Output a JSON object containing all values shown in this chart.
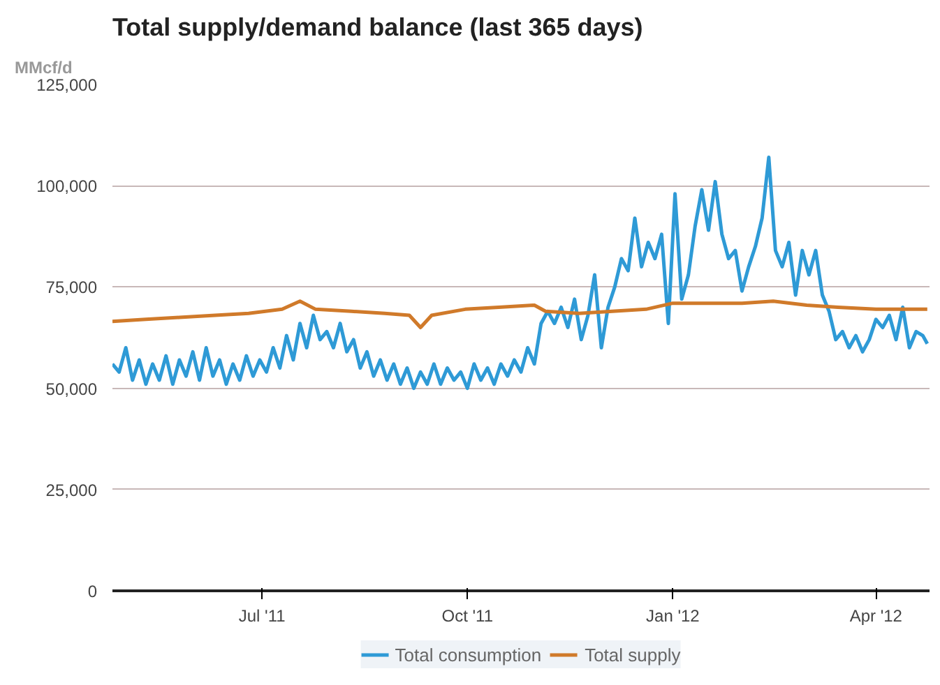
{
  "chart_data": {
    "type": "line",
    "title": "Total supply/demand balance (last 365 days)",
    "ylabel": "MMcf/d",
    "xlim": [
      "2011-04-25",
      "2012-04-25"
    ],
    "ylim": [
      0,
      125000
    ],
    "yticks": [
      {
        "value": 0,
        "label": "0"
      },
      {
        "value": 25000,
        "label": "25,000"
      },
      {
        "value": 50000,
        "label": "50,000"
      },
      {
        "value": 75000,
        "label": "75,000"
      },
      {
        "value": 100000,
        "label": "100,000"
      },
      {
        "value": 125000,
        "label": "125,000"
      }
    ],
    "xticks": [
      {
        "value": "2011-07-01",
        "label": "Jul '11"
      },
      {
        "value": "2011-10-01",
        "label": "Oct '11"
      },
      {
        "value": "2012-01-01",
        "label": "Jan '12"
      },
      {
        "value": "2012-04-01",
        "label": "Apr '12"
      }
    ],
    "grid": "y",
    "legend": "bottom",
    "marker": "none",
    "line_style": "solid",
    "series": [
      {
        "name": "Total consumption",
        "color": "#2e9ad6",
        "x": [
          "2011-04-25",
          "2011-04-28",
          "2011-05-01",
          "2011-05-04",
          "2011-05-07",
          "2011-05-10",
          "2011-05-13",
          "2011-05-16",
          "2011-05-19",
          "2011-05-22",
          "2011-05-25",
          "2011-05-28",
          "2011-05-31",
          "2011-06-03",
          "2011-06-06",
          "2011-06-09",
          "2011-06-12",
          "2011-06-15",
          "2011-06-18",
          "2011-06-21",
          "2011-06-24",
          "2011-06-27",
          "2011-06-30",
          "2011-07-03",
          "2011-07-06",
          "2011-07-09",
          "2011-07-12",
          "2011-07-15",
          "2011-07-18",
          "2011-07-21",
          "2011-07-24",
          "2011-07-27",
          "2011-07-30",
          "2011-08-02",
          "2011-08-05",
          "2011-08-08",
          "2011-08-11",
          "2011-08-14",
          "2011-08-17",
          "2011-08-20",
          "2011-08-23",
          "2011-08-26",
          "2011-08-29",
          "2011-09-01",
          "2011-09-04",
          "2011-09-07",
          "2011-09-10",
          "2011-09-13",
          "2011-09-16",
          "2011-09-19",
          "2011-09-22",
          "2011-09-25",
          "2011-09-28",
          "2011-10-01",
          "2011-10-04",
          "2011-10-07",
          "2011-10-10",
          "2011-10-13",
          "2011-10-16",
          "2011-10-19",
          "2011-10-22",
          "2011-10-25",
          "2011-10-28",
          "2011-10-31",
          "2011-11-03",
          "2011-11-06",
          "2011-11-09",
          "2011-11-12",
          "2011-11-15",
          "2011-11-18",
          "2011-11-21",
          "2011-11-24",
          "2011-11-27",
          "2011-11-30",
          "2011-12-03",
          "2011-12-06",
          "2011-12-09",
          "2011-12-12",
          "2011-12-15",
          "2011-12-18",
          "2011-12-21",
          "2011-12-24",
          "2011-12-27",
          "2011-12-30",
          "2012-01-02",
          "2012-01-05",
          "2012-01-08",
          "2012-01-11",
          "2012-01-14",
          "2012-01-17",
          "2012-01-20",
          "2012-01-23",
          "2012-01-26",
          "2012-01-29",
          "2012-02-01",
          "2012-02-04",
          "2012-02-07",
          "2012-02-10",
          "2012-02-13",
          "2012-02-16",
          "2012-02-19",
          "2012-02-22",
          "2012-02-25",
          "2012-02-28",
          "2012-03-02",
          "2012-03-05",
          "2012-03-08",
          "2012-03-11",
          "2012-03-14",
          "2012-03-17",
          "2012-03-20",
          "2012-03-23",
          "2012-03-26",
          "2012-03-29",
          "2012-04-01",
          "2012-04-04",
          "2012-04-07",
          "2012-04-10",
          "2012-04-13",
          "2012-04-16",
          "2012-04-19",
          "2012-04-22",
          "2012-04-24"
        ],
        "values": [
          56000,
          54000,
          60000,
          52000,
          57000,
          51000,
          56000,
          52000,
          58000,
          51000,
          57000,
          53000,
          59000,
          52000,
          60000,
          53000,
          57000,
          51000,
          56000,
          52000,
          58000,
          53000,
          57000,
          54000,
          60000,
          55000,
          63000,
          57000,
          66000,
          60000,
          68000,
          62000,
          64000,
          60000,
          66000,
          59000,
          62000,
          55000,
          59000,
          53000,
          57000,
          52000,
          56000,
          51000,
          55000,
          50000,
          54000,
          51000,
          56000,
          51000,
          55000,
          52000,
          54000,
          50000,
          56000,
          52000,
          55000,
          51000,
          56000,
          53000,
          57000,
          54000,
          60000,
          56000,
          66000,
          69000,
          66000,
          70000,
          65000,
          72000,
          62000,
          68000,
          78000,
          60000,
          70000,
          75000,
          82000,
          79000,
          92000,
          80000,
          86000,
          82000,
          88000,
          66000,
          98000,
          72000,
          78000,
          90000,
          99000,
          89000,
          101000,
          88000,
          82000,
          84000,
          74000,
          80000,
          85000,
          92000,
          107000,
          84000,
          80000,
          86000,
          73000,
          84000,
          78000,
          84000,
          73000,
          69000,
          62000,
          64000,
          60000,
          63000,
          59000,
          62000,
          67000,
          65000,
          68000,
          62000,
          70000,
          60000,
          64000,
          63000,
          61000
        ]
      },
      {
        "name": "Total supply",
        "color": "#d07a2a",
        "x": [
          "2011-04-25",
          "2011-05-10",
          "2011-05-25",
          "2011-06-10",
          "2011-06-25",
          "2011-07-10",
          "2011-07-18",
          "2011-07-25",
          "2011-08-10",
          "2011-08-25",
          "2011-09-05",
          "2011-09-10",
          "2011-09-15",
          "2011-09-30",
          "2011-10-15",
          "2011-10-31",
          "2011-11-05",
          "2011-11-20",
          "2011-12-05",
          "2011-12-20",
          "2012-01-01",
          "2012-01-15",
          "2012-02-01",
          "2012-02-15",
          "2012-03-01",
          "2012-03-15",
          "2012-04-01",
          "2012-04-24"
        ],
        "values": [
          66500,
          67000,
          67500,
          68000,
          68500,
          69500,
          71500,
          69500,
          69000,
          68500,
          68000,
          65000,
          68000,
          69500,
          70000,
          70500,
          69000,
          68500,
          69000,
          69500,
          71000,
          71000,
          71000,
          71500,
          70500,
          70000,
          69500,
          69500
        ]
      }
    ]
  }
}
